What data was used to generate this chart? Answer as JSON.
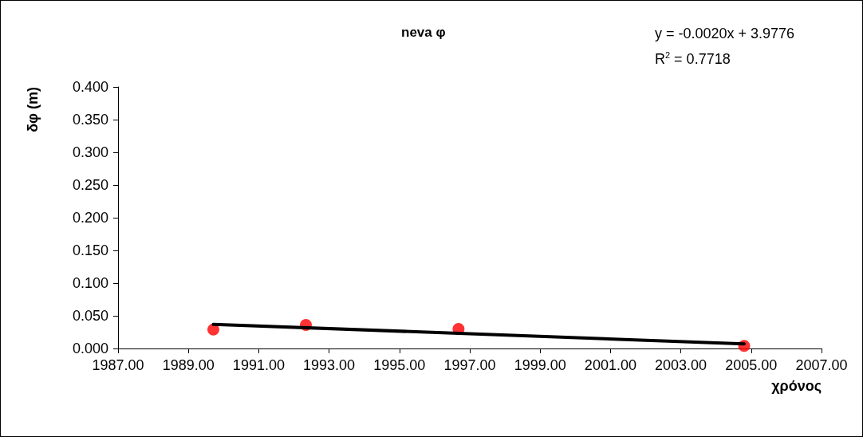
{
  "chart_data": {
    "type": "scatter",
    "title": "neva φ",
    "xlabel": "χρόνος",
    "ylabel": "δφ (m)",
    "annotations": [
      "y = -0.0020x + 3.9776",
      "R$^{2}$ = 0.7718"
    ],
    "series": [
      {
        "marker": "circle",
        "color": "#ff0000",
        "x": [
          1989.71,
          1992.34,
          1996.68,
          2004.8
        ],
        "values": [
          0.029,
          0.036,
          0.03,
          0.004
        ]
      },
      {
        "type": "line",
        "marker": "none",
        "color": "#000000",
        "x": [
          1989.71,
          2004.8
        ],
        "values": [
          0.037,
          0.007
        ]
      }
    ],
    "xlim": [
      1987,
      2007
    ],
    "xticks": [
      {
        "value": 1987,
        "label": "1987.00"
      },
      {
        "value": 1989,
        "label": "1989.00"
      },
      {
        "value": 1991,
        "label": "1991.00"
      },
      {
        "value": 1993,
        "label": "1993.00"
      },
      {
        "value": 1995,
        "label": "1995.00"
      },
      {
        "value": 1997,
        "label": "1997.00"
      },
      {
        "value": 1999,
        "label": "1999.00"
      },
      {
        "value": 2001,
        "label": "2001.00"
      },
      {
        "value": 2003,
        "label": "2003.00"
      },
      {
        "value": 2005,
        "label": "2005.00"
      },
      {
        "value": 2007,
        "label": "2007.00"
      }
    ],
    "ylim": [
      0,
      0.4
    ],
    "yticks": [
      {
        "value": 0,
        "label": "0.000"
      },
      {
        "value": 0.05,
        "label": "0.050"
      },
      {
        "value": 0.1,
        "label": "0.100"
      },
      {
        "value": 0.15,
        "label": "0.150"
      },
      {
        "value": 0.2,
        "label": "0.200"
      },
      {
        "value": 0.25,
        "label": "0.250"
      },
      {
        "value": 0.3,
        "label": "0.300"
      },
      {
        "value": 0.35,
        "label": "0.350"
      },
      {
        "value": 0.4,
        "label": "0.400"
      }
    ],
    "grid": false
  }
}
